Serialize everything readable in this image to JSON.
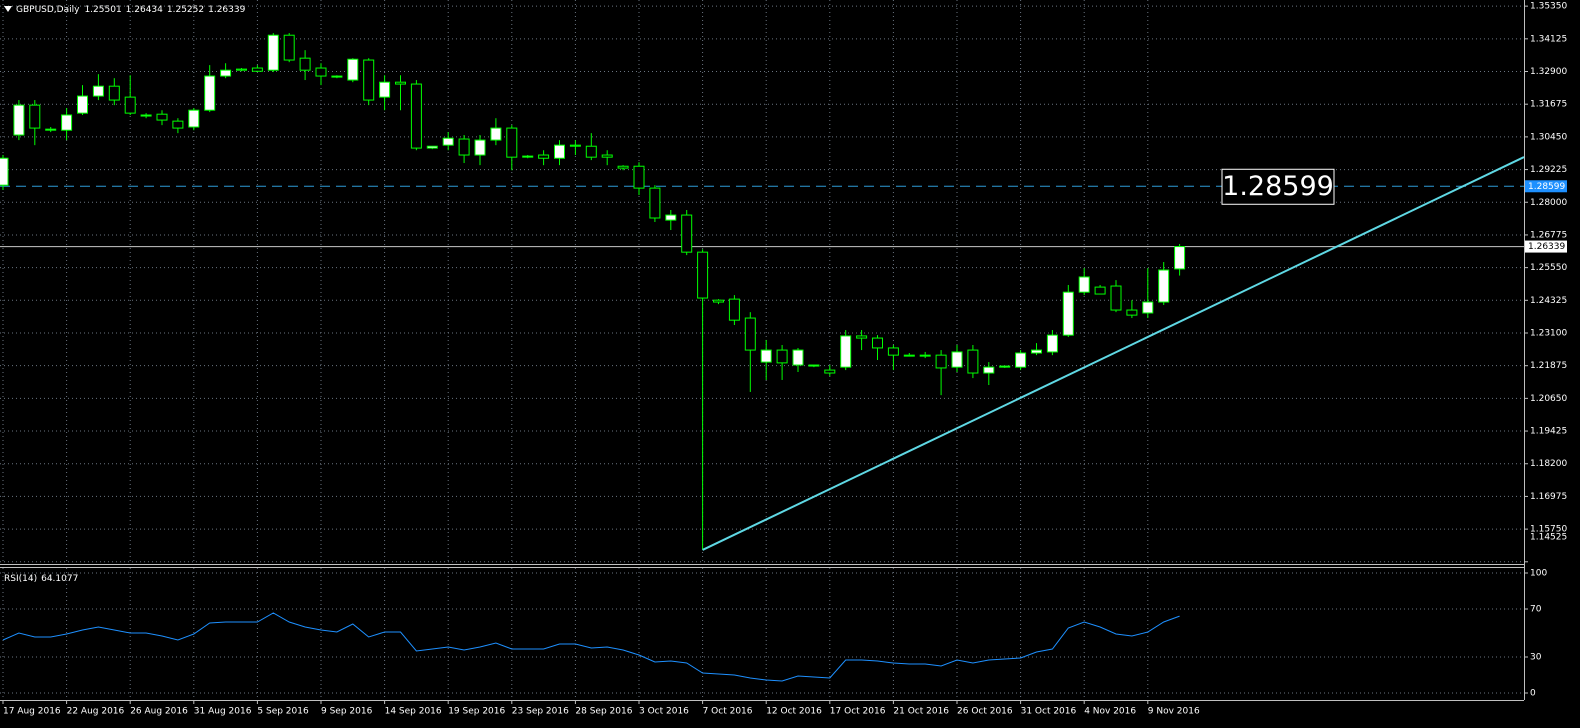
{
  "chart_data": [
    {
      "type": "candlestick",
      "title": "GBPUSD,Daily",
      "categories": [
        "17 Aug 2016",
        null,
        null,
        null,
        "22 Aug 2016",
        null,
        null,
        null,
        "26 Aug 2016",
        null,
        null,
        null,
        "31 Aug 2016",
        null,
        null,
        null,
        "5 Sep 2016",
        null,
        null,
        null,
        "9 Sep 2016",
        null,
        null,
        null,
        "14 Sep 2016",
        null,
        null,
        null,
        "19 Sep 2016",
        null,
        null,
        null,
        "23 Sep 2016",
        null,
        null,
        null,
        "28 Sep 2016",
        null,
        null,
        null,
        "3 Oct 2016",
        null,
        null,
        null,
        "7 Oct 2016",
        null,
        null,
        null,
        "12 Oct 2016",
        null,
        null,
        null,
        "17 Oct 2016",
        null,
        null,
        null,
        "21 Oct 2016",
        null,
        null,
        null,
        "26 Oct 2016",
        null,
        null,
        null,
        "31 Oct 2016",
        null,
        null,
        null,
        "4 Nov 2016",
        null,
        null,
        null,
        "9 Nov 2016",
        null,
        null
      ],
      "open": [
        1.2864,
        1.3052,
        1.3164,
        1.307,
        1.307,
        1.3134,
        1.3198,
        1.3235,
        1.3194,
        1.3123,
        1.313,
        1.3104,
        1.3082,
        1.3145,
        1.3273,
        1.3299,
        1.3303,
        1.3295,
        1.3426,
        1.334,
        1.3303,
        1.3269,
        1.3258,
        1.3333,
        1.3194,
        1.325,
        1.3243,
        1.3003,
        1.3014,
        1.3037,
        1.2977,
        1.3033,
        1.3078,
        1.2969,
        1.2977,
        1.2965,
        1.3014,
        1.301,
        1.2977,
        1.2935,
        1.2935,
        1.2853,
        1.2733,
        1.2752,
        1.2613,
        1.2433,
        1.2437,
        1.2366,
        1.2201,
        1.2246,
        1.219,
        1.2186,
        1.2171,
        1.2182,
        1.2299,
        1.2291,
        1.2254,
        1.2227,
        1.2227,
        1.2227,
        1.2182,
        1.2246,
        1.216,
        1.2182,
        1.2182,
        1.2235,
        1.2239,
        1.2302,
        1.2463,
        1.2482,
        1.2486,
        1.2396,
        1.2385,
        1.2426,
        1.25501
      ],
      "high": [
        1.2977,
        1.3183,
        1.3183,
        1.3082,
        1.3153,
        1.3239,
        1.328,
        1.3265,
        1.3276,
        1.3134,
        1.3145,
        1.3115,
        1.3153,
        1.3314,
        1.3321,
        1.3303,
        1.3314,
        1.3434,
        1.3434,
        1.337,
        1.3321,
        1.3276,
        1.334,
        1.334,
        1.3276,
        1.3276,
        1.3258,
        1.301,
        1.3063,
        1.3052,
        1.3052,
        1.3115,
        1.3089,
        1.2977,
        1.2995,
        1.3033,
        1.3033,
        1.3059,
        1.2995,
        1.2939,
        1.295,
        1.2864,
        1.2771,
        1.2771,
        1.2624,
        1.2437,
        1.2452,
        1.2388,
        1.2284,
        1.2265,
        1.2254,
        1.219,
        1.219,
        1.2321,
        1.2321,
        1.2302,
        1.2265,
        1.2235,
        1.2239,
        1.2246,
        1.2265,
        1.2265,
        1.2201,
        1.2186,
        1.2246,
        1.2272,
        1.2321,
        1.249,
        1.2553,
        1.249,
        1.2508,
        1.2433,
        1.2553,
        1.2576,
        1.26434
      ],
      "low": [
        1.2846,
        1.3033,
        1.3014,
        1.3063,
        1.3033,
        1.3127,
        1.3183,
        1.3164,
        1.3127,
        1.3115,
        1.3089,
        1.3059,
        1.307,
        1.3138,
        1.3265,
        1.3291,
        1.3288,
        1.3288,
        1.3325,
        1.3258,
        1.3239,
        1.3265,
        1.325,
        1.3164,
        1.3145,
        1.3145,
        1.2995,
        1.2999,
        1.2995,
        1.2947,
        1.2939,
        1.3014,
        1.292,
        1.2965,
        1.2939,
        1.2939,
        1.2977,
        1.2958,
        1.2939,
        1.292,
        1.2827,
        1.2726,
        1.2696,
        1.2602,
        1.1497,
        1.2418,
        1.234,
        1.2089,
        1.2134,
        1.2134,
        1.2164,
        1.2182,
        1.2149,
        1.2171,
        1.2246,
        1.2209,
        1.2171,
        1.2224,
        1.2216,
        1.2077,
        1.2164,
        1.2141,
        1.2115,
        1.2179,
        1.2171,
        1.2227,
        1.2227,
        1.2295,
        1.2452,
        1.2456,
        1.2388,
        1.2366,
        1.2366,
        1.2415,
        1.25252
      ],
      "close": [
        1.2965,
        1.3164,
        1.3078,
        1.3074,
        1.3127,
        1.3198,
        1.3235,
        1.3183,
        1.3134,
        1.3127,
        1.3108,
        1.3078,
        1.3145,
        1.3273,
        1.3295,
        1.3295,
        1.3291,
        1.3426,
        1.3333,
        1.3295,
        1.3273,
        1.3273,
        1.3336,
        1.3183,
        1.325,
        1.3243,
        1.3003,
        1.301,
        1.304,
        1.2977,
        1.3033,
        1.3078,
        1.2969,
        1.2973,
        1.2965,
        1.3014,
        1.301,
        1.2969,
        1.2969,
        1.2928,
        1.2853,
        1.2741,
        1.2752,
        1.2613,
        1.2441,
        1.2426,
        1.2358,
        1.2246,
        1.2246,
        1.2198,
        1.2246,
        1.219,
        1.216,
        1.2299,
        1.2291,
        1.2254,
        1.2227,
        1.2224,
        1.2224,
        1.2179,
        1.2239,
        1.216,
        1.2182,
        1.2186,
        1.2235,
        1.2246,
        1.2302,
        1.2463,
        1.252,
        1.2456,
        1.2396,
        1.2377,
        1.2426,
        1.2546,
        1.26339
      ],
      "wick_color": "#00ff00",
      "up_color": "#ffffff",
      "down_color": "#000000",
      "ylim": [
        1.1448,
        1.3558
      ],
      "yticks": [
        {
          "value": 1.3535,
          "label": "1.35350"
        },
        1.34125,
        {
          "value": 1.329,
          "label": "1.32900"
        },
        1.31675,
        {
          "value": 1.3045,
          "label": "1.30450"
        },
        1.29225,
        {
          "value": 1.28,
          "label": "1.28000"
        },
        1.26775,
        {
          "value": 1.2555,
          "label": "1.25550"
        },
        1.24325,
        {
          "value": 1.231,
          "label": "1.23100"
        },
        1.21875,
        {
          "value": 1.2065,
          "label": "1.20650"
        },
        1.19425,
        {
          "value": 1.182,
          "label": "1.18200"
        },
        1.16975,
        {
          "value": 1.1575,
          "label": "1.15750"
        },
        1.14525
      ],
      "grid": true,
      "price_lines": [
        {
          "value": 1.28599,
          "color": "#2e9bd6",
          "style": "dashed",
          "tag_color": "#1e90ff",
          "text_color": "#ffffff",
          "label_box": true
        },
        {
          "value": 1.26339,
          "color": "#c8c8c8",
          "style": "solid",
          "tag_color": "#ffffff",
          "text_color": "#000000",
          "label_box": false
        }
      ],
      "trendline": {
        "color": "#5fd8e4",
        "prices": [
          1.1497,
          1.2352
        ]
      }
    },
    {
      "type": "line",
      "title": "RSI(14)",
      "color": "#1e90ff",
      "values": [
        44.2,
        50,
        46.7,
        46.7,
        49.2,
        52.5,
        55,
        52.5,
        50,
        50,
        47.5,
        44.2,
        49.2,
        58.3,
        59.2,
        59.2,
        59.2,
        66.7,
        59.2,
        55,
        52.5,
        50.8,
        57.5,
        46.7,
        50.8,
        50.8,
        35,
        36.7,
        38.3,
        35.8,
        38.3,
        41.7,
        36.7,
        36.7,
        36.7,
        40.8,
        40.8,
        37.5,
        38.3,
        35.8,
        31.7,
        25.8,
        26.7,
        25,
        16.7,
        15.8,
        15,
        12.5,
        10.8,
        10,
        14.2,
        13.3,
        12.5,
        27.5,
        27.5,
        26.7,
        25,
        24.2,
        24.2,
        22.5,
        27.5,
        25,
        27.5,
        28.3,
        29.2,
        34.2,
        36.7,
        54.2,
        59.2,
        55,
        49.2,
        47.5,
        50.8,
        59.2,
        64.1077
      ],
      "ylim": [
        0,
        100
      ],
      "yticks": [
        0,
        30,
        70,
        100
      ],
      "grid": true
    }
  ]
}
